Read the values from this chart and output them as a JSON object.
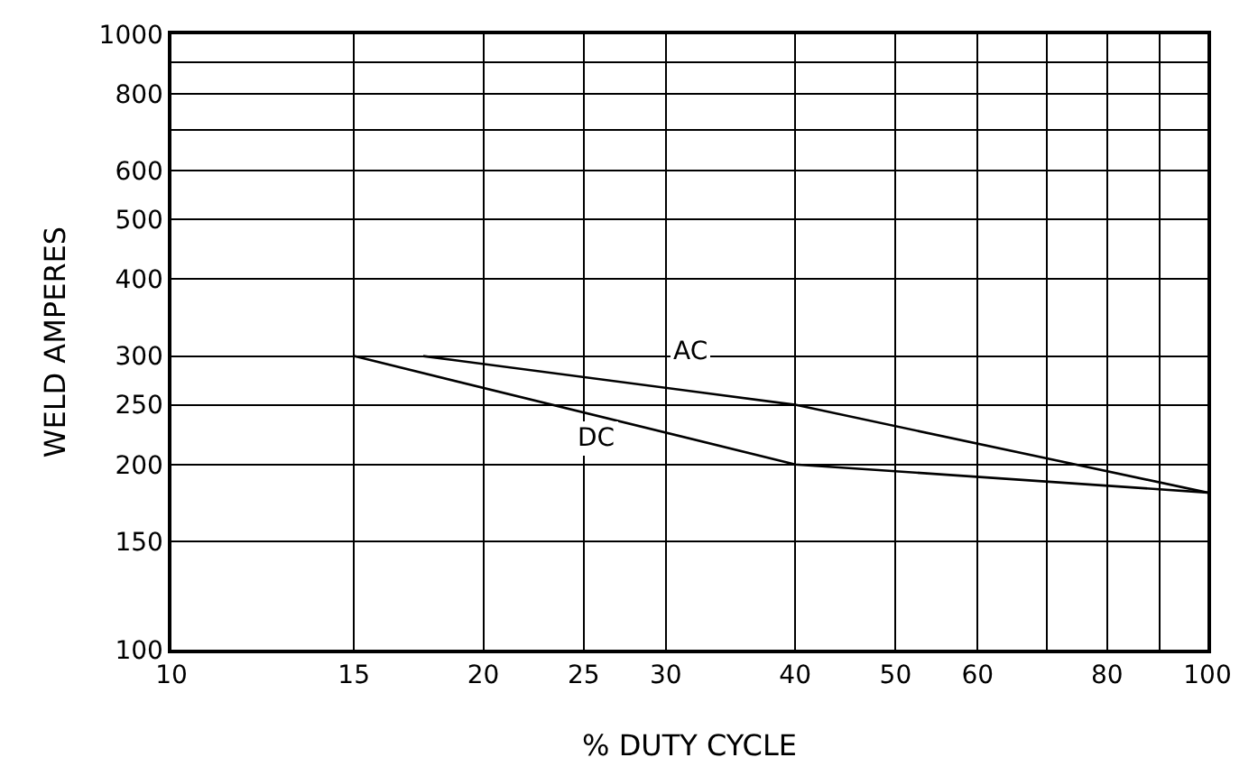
{
  "chart_data": {
    "type": "line",
    "xlabel": "% DUTY CYCLE",
    "ylabel": "WELD AMPERES",
    "series": [
      {
        "name": "AC",
        "color": "#000000",
        "x": [
          17.5,
          40,
          100
        ],
        "values": [
          300,
          250,
          180
        ]
      },
      {
        "name": "DC",
        "color": "#000000",
        "x": [
          15,
          40,
          100
        ],
        "values": [
          300,
          200,
          180
        ]
      }
    ],
    "log": "xy",
    "xlim": [
      10,
      100
    ],
    "ylim": [
      100,
      1000
    ],
    "xticks": [
      10,
      15,
      20,
      25,
      30,
      40,
      50,
      60,
      {
        "value": 70,
        "label": null
      },
      80,
      {
        "value": 90,
        "label": null
      },
      100
    ],
    "yticks": [
      100,
      150,
      200,
      250,
      300,
      400,
      500,
      600,
      {
        "value": 700,
        "label": null
      },
      800,
      {
        "value": 900,
        "label": null
      },
      1000
    ],
    "grid": true,
    "legend": false,
    "marker": "none",
    "line_style": "solid"
  }
}
